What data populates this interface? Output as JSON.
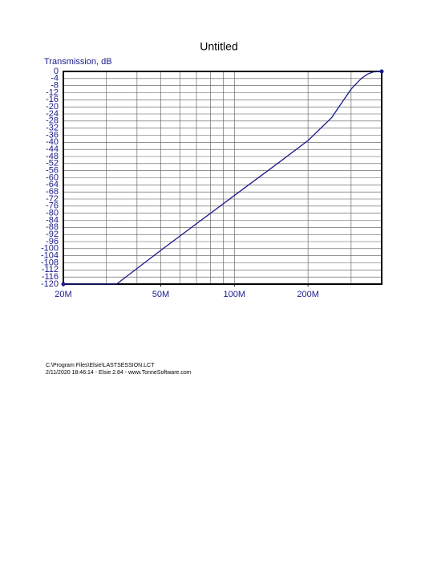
{
  "chart_data": {
    "type": "line",
    "title": "Untitled",
    "y_label": "Transmission, dB",
    "x": [
      20000000,
      33000000,
      50000000,
      100000000,
      150000000,
      200000000,
      250000000,
      280000000,
      300000000,
      330000000,
      350000000,
      370000000,
      400000000
    ],
    "values": [
      -120,
      -120,
      -101,
      -70,
      -52,
      -39,
      -26,
      -16,
      -10,
      -4,
      -1.5,
      -0.3,
      0
    ],
    "color": "#1a1a8c",
    "x_log": true,
    "xlim": [
      20000000,
      400000000
    ],
    "xticks": [
      {
        "value": 20000000,
        "label": "20M"
      },
      {
        "value": 50000000,
        "label": "50M"
      },
      {
        "value": 100000000,
        "label": "100M"
      },
      {
        "value": 200000000,
        "label": "200M"
      }
    ],
    "xgrid": [
      30000000,
      40000000,
      50000000,
      60000000,
      70000000,
      80000000,
      90000000,
      100000000,
      200000000,
      300000000
    ],
    "ylim": [
      -120,
      0
    ],
    "yticks": [
      0,
      -4,
      -8,
      -12,
      -16,
      -20,
      -24,
      -28,
      -32,
      -36,
      -40,
      -44,
      -48,
      -52,
      -56,
      -60,
      -64,
      -68,
      -72,
      -76,
      -80,
      -84,
      -88,
      -92,
      -96,
      -100,
      -104,
      -108,
      -112,
      -116,
      -120
    ],
    "grid": true,
    "footer": [
      "C:\\Program Files\\Elsie\\LASTSESSION.LCT",
      "2/11/2020 18:46:14   -   Elsie 2.84   -   www.TonneSoftware.com"
    ]
  }
}
